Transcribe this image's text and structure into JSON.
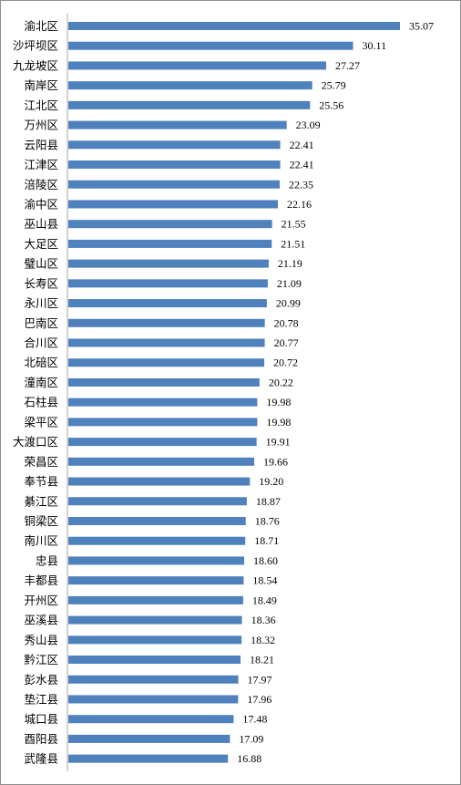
{
  "chart_data": {
    "type": "bar",
    "orientation": "horizontal",
    "categories": [
      "渝北区",
      "沙坪坝区",
      "九龙坡区",
      "南岸区",
      "江北区",
      "万州区",
      "云阳县",
      "江津区",
      "涪陵区",
      "渝中区",
      "巫山县",
      "大足区",
      "璧山区",
      "长寿区",
      "永川区",
      "巴南区",
      "合川区",
      "北碚区",
      "潼南区",
      "石柱县",
      "梁平区",
      "大渡口区",
      "荣昌区",
      "奉节县",
      "綦江区",
      "铜梁区",
      "南川区",
      "忠县",
      "丰都县",
      "开州区",
      "巫溪县",
      "秀山县",
      "黔江区",
      "彭水县",
      "垫江县",
      "城口县",
      "酉阳县",
      "武隆县"
    ],
    "values": [
      35.07,
      30.11,
      27.27,
      25.79,
      25.56,
      23.09,
      22.41,
      22.41,
      22.35,
      22.16,
      21.55,
      21.51,
      21.19,
      21.09,
      20.99,
      20.78,
      20.77,
      20.72,
      20.22,
      19.98,
      19.98,
      19.91,
      19.66,
      19.2,
      18.87,
      18.76,
      18.71,
      18.6,
      18.54,
      18.49,
      18.36,
      18.32,
      18.21,
      17.97,
      17.96,
      17.48,
      17.09,
      16.88
    ],
    "value_labels": [
      "35.07",
      "30.11",
      "27.27",
      "25.79",
      "25.56",
      "23.09",
      "22.41",
      "22.41",
      "22.35",
      "22.16",
      "21.55",
      "21.51",
      "21.19",
      "21.09",
      "20.99",
      "20.78",
      "20.77",
      "20.72",
      "20.22",
      "19.98",
      "19.98",
      "19.91",
      "19.66",
      "19.20",
      "18.87",
      "18.76",
      "18.71",
      "18.60",
      "18.54",
      "18.49",
      "18.36",
      "18.32",
      "18.21",
      "17.97",
      "17.96",
      "17.48",
      "17.09",
      "16.88"
    ],
    "xlim": [
      0,
      35.07
    ],
    "grid": false,
    "legend": "none",
    "bar_color": "#4f81bd"
  }
}
